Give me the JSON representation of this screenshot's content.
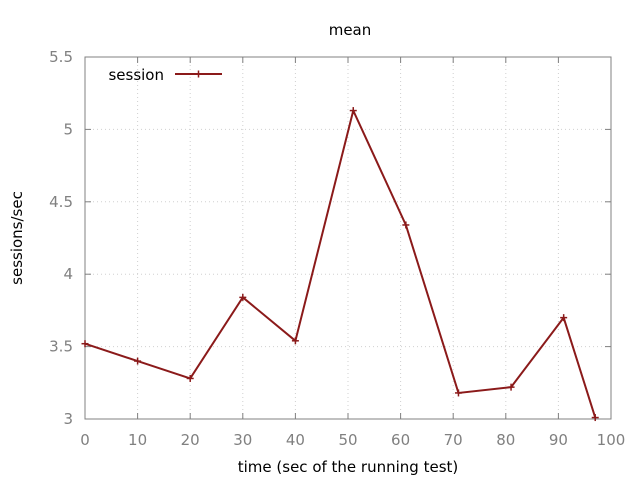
{
  "chart_data": {
    "type": "line",
    "title": "mean",
    "xlabel": "time (sec of the running test)",
    "ylabel": "sessions/sec",
    "xlim": [
      0,
      100
    ],
    "ylim": [
      3,
      5.5
    ],
    "xticks": [
      "0",
      "10",
      "20",
      "30",
      "40",
      "50",
      "60",
      "70",
      "80",
      "90",
      "100"
    ],
    "yticks": [
      "3",
      "3.5",
      "4",
      "4.5",
      "5",
      "5.5"
    ],
    "grid": true,
    "legend_position": "top-left",
    "series": [
      {
        "name": "session",
        "color": "#8b1a1a",
        "marker": "plus",
        "x": [
          0,
          10,
          20,
          30,
          40,
          51,
          61,
          71,
          81,
          91,
          97
        ],
        "y": [
          3.52,
          3.4,
          3.28,
          3.84,
          3.54,
          5.13,
          4.34,
          3.18,
          3.22,
          3.7,
          3.01
        ]
      }
    ]
  }
}
